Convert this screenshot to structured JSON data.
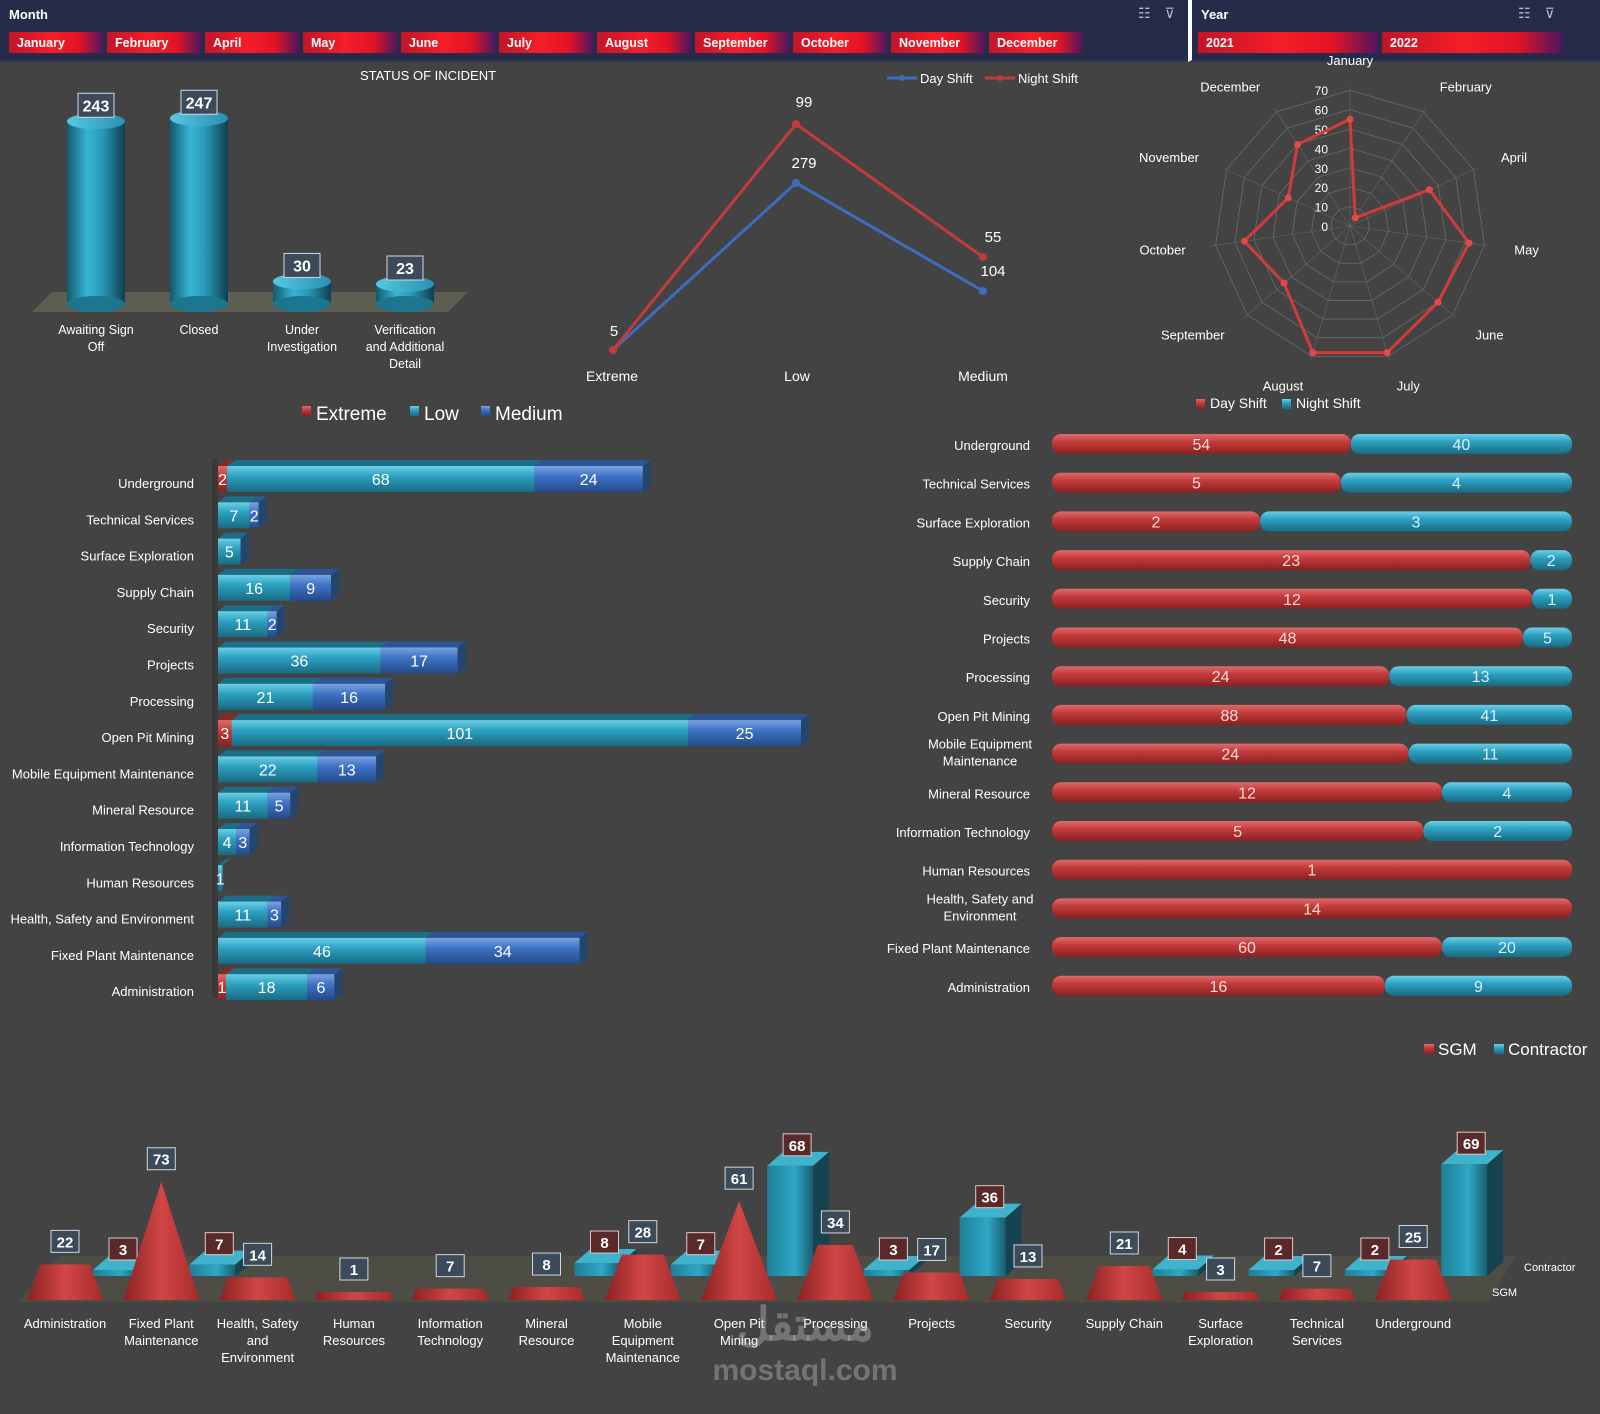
{
  "slicers": {
    "month": {
      "title": "Month",
      "items": [
        "January",
        "February",
        "April",
        "May",
        "June",
        "July",
        "August",
        "September",
        "October",
        "November",
        "December"
      ]
    },
    "year": {
      "title": "Year",
      "items": [
        "2021",
        "2022"
      ]
    },
    "icons": [
      "multi-select-icon",
      "clear-filter-icon"
    ]
  },
  "colors": {
    "red": "#c33b3b",
    "blue": "#2c9fc0",
    "darkblue": "#3e72c4",
    "bg": "#434343",
    "slicer": "#272b4a"
  },
  "watermark": {
    "arabic": "مستقل",
    "latin": "mostaql.com"
  },
  "chart_data": [
    {
      "id": "status",
      "type": "bar",
      "title": "STATUS OF INCIDENT",
      "categories": [
        "Awaiting Sign Off",
        "Closed",
        "Under Investigation",
        "Verification and Additional Detail"
      ],
      "values": [
        243,
        247,
        30,
        23
      ],
      "ylim": [
        0,
        250
      ]
    },
    {
      "id": "severity",
      "type": "line",
      "categories": [
        "Extreme",
        "Low",
        "Medium"
      ],
      "series": [
        {
          "name": "Day Shift",
          "values": [
            5,
            279,
            104
          ],
          "color": "#3d6cc0"
        },
        {
          "name": "Night Shift",
          "values": [
            1,
            99,
            55
          ],
          "color": "#c33b3b"
        }
      ],
      "labels": {
        "Extreme": "5",
        "Low": [
          "99",
          "279"
        ],
        "Medium": [
          "55",
          "104"
        ]
      },
      "legend": "top-right"
    },
    {
      "id": "radar",
      "type": "radar",
      "categories": [
        "January",
        "February",
        "April",
        "May",
        "June",
        "July",
        "August",
        "September",
        "October",
        "November",
        "December"
      ],
      "values": [
        55,
        5,
        45,
        62,
        60,
        68,
        68,
        45,
        55,
        35,
        50
      ],
      "rticks": [
        0,
        10,
        20,
        30,
        40,
        50,
        60,
        70
      ],
      "rlim": [
        0,
        70
      ]
    },
    {
      "id": "dept-severity",
      "type": "bar",
      "orientation": "horizontal",
      "stacked": true,
      "categories": [
        "Underground",
        "Technical Services",
        "Surface Exploration",
        "Supply Chain",
        "Security",
        "Projects",
        "Processing",
        "Open Pit Mining",
        "Mobile Equipment Maintenance",
        "Mineral Resource",
        "Information Technology",
        "Human Resources",
        "Health, Safety and Environment",
        "Fixed Plant Maintenance",
        "Administration"
      ],
      "series": [
        {
          "name": "Extreme",
          "values": [
            2,
            0,
            0,
            0,
            0,
            0,
            0,
            3,
            0,
            0,
            0,
            0,
            0,
            0,
            1
          ]
        },
        {
          "name": "Low",
          "values": [
            68,
            7,
            5,
            16,
            11,
            36,
            21,
            101,
            22,
            11,
            4,
            1,
            11,
            46,
            18
          ]
        },
        {
          "name": "Medium",
          "values": [
            24,
            2,
            0,
            9,
            2,
            17,
            16,
            25,
            13,
            5,
            3,
            0,
            3,
            34,
            6
          ]
        }
      ],
      "legend": "top"
    },
    {
      "id": "dept-shift",
      "type": "bar",
      "orientation": "horizontal",
      "stacked": true,
      "percent": true,
      "categories": [
        "Underground",
        "Technical Services",
        "Surface Exploration",
        "Supply Chain",
        "Security",
        "Projects",
        "Processing",
        "Open Pit Mining",
        "Mobile Equipment Maintenance",
        "Mineral Resource",
        "Information Technology",
        "Human Resources",
        "Health, Safety and Environment",
        "Fixed Plant Maintenance",
        "Administration"
      ],
      "series": [
        {
          "name": "Day Shift",
          "values": [
            54,
            5,
            2,
            23,
            12,
            48,
            24,
            88,
            24,
            12,
            5,
            1,
            14,
            60,
            16
          ]
        },
        {
          "name": "Night Shift",
          "values": [
            40,
            4,
            3,
            2,
            1,
            5,
            13,
            41,
            11,
            4,
            2,
            0,
            0,
            20,
            9
          ]
        }
      ],
      "legend": "top"
    },
    {
      "id": "dept-employer",
      "type": "bar",
      "categories": [
        "Administration",
        "Fixed Plant Maintenance",
        "Health, Safety and Environment",
        "Human Resources",
        "Information Technology",
        "Mineral Resource",
        "Mobile Equipment Maintenance",
        "Open Pit Mining",
        "Processing",
        "Projects",
        "Security",
        "Supply Chain",
        "Surface Exploration",
        "Technical Services",
        "Underground"
      ],
      "series": [
        {
          "name": "SGM",
          "values": [
            22,
            73,
            14,
            1,
            7,
            8,
            28,
            61,
            34,
            17,
            13,
            21,
            3,
            7,
            25
          ]
        },
        {
          "name": "Contractor",
          "values": [
            3,
            7,
            null,
            null,
            null,
            8,
            7,
            68,
            3,
            36,
            null,
            4,
            2,
            2,
            69
          ]
        }
      ],
      "depth_labels": [
        "Contractor",
        "SGM"
      ],
      "legend": "top-right"
    }
  ]
}
